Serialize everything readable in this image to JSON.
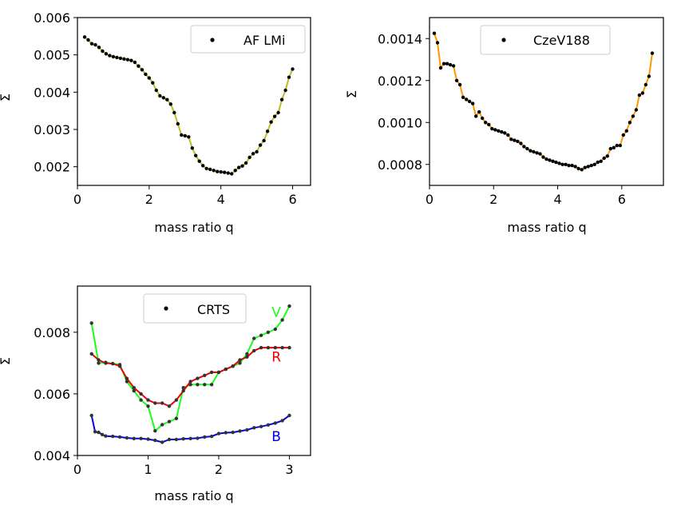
{
  "figure": {
    "background": "#ffffff"
  },
  "chart_data": [
    {
      "id": "af-lmi",
      "type": "line",
      "title": "",
      "xlabel": "mass ratio q",
      "ylabel": "Σ",
      "xlim": [
        0,
        6.5
      ],
      "ylim": [
        0.0015,
        0.006
      ],
      "xticks": [
        0,
        2,
        4,
        6
      ],
      "xtick_labels": [
        "0",
        "2",
        "4",
        "6"
      ],
      "yticks": [
        0.002,
        0.003,
        0.004,
        0.005,
        0.006
      ],
      "ytick_labels": [
        "0.002",
        "0.003",
        "0.004",
        "0.005",
        "0.006"
      ],
      "legend": {
        "label": "AF LMi",
        "position": "top-right",
        "marker_color": "#000000"
      },
      "grid": false,
      "series": [
        {
          "name": "AF LMi",
          "color": "#bcbd22",
          "marker_color": "#000000",
          "x": [
            0.2,
            0.3,
            0.4,
            0.5,
            0.6,
            0.7,
            0.8,
            0.9,
            1.0,
            1.1,
            1.2,
            1.3,
            1.4,
            1.5,
            1.6,
            1.7,
            1.8,
            1.9,
            2.0,
            2.1,
            2.2,
            2.3,
            2.4,
            2.5,
            2.6,
            2.7,
            2.8,
            2.9,
            3.0,
            3.1,
            3.2,
            3.3,
            3.4,
            3.5,
            3.6,
            3.7,
            3.8,
            3.9,
            4.0,
            4.1,
            4.2,
            4.3,
            4.4,
            4.5,
            4.6,
            4.7,
            4.8,
            4.9,
            5.0,
            5.1,
            5.2,
            5.3,
            5.4,
            5.5,
            5.6,
            5.7,
            5.8,
            5.9,
            6.0
          ],
          "y": [
            0.00548,
            0.0054,
            0.0053,
            0.00527,
            0.0052,
            0.0051,
            0.00503,
            0.00498,
            0.00495,
            0.00493,
            0.00491,
            0.00489,
            0.00487,
            0.00485,
            0.0048,
            0.0047,
            0.0046,
            0.00448,
            0.00438,
            0.00425,
            0.00405,
            0.0039,
            0.00385,
            0.0038,
            0.00368,
            0.00345,
            0.00315,
            0.00285,
            0.00283,
            0.0028,
            0.0025,
            0.0023,
            0.00215,
            0.00203,
            0.00195,
            0.00193,
            0.0019,
            0.00187,
            0.00186,
            0.00185,
            0.00183,
            0.00181,
            0.0019,
            0.00198,
            0.00202,
            0.0021,
            0.00225,
            0.00235,
            0.0024,
            0.00258,
            0.0027,
            0.00295,
            0.0032,
            0.00335,
            0.00345,
            0.0038,
            0.00405,
            0.0044,
            0.00462
          ]
        }
      ]
    },
    {
      "id": "czev188",
      "type": "line",
      "title": "",
      "xlabel": "mass ratio q",
      "ylabel": "Σ",
      "xlim": [
        0,
        7.3
      ],
      "ylim": [
        0.0007,
        0.0015
      ],
      "xticks": [
        0,
        2,
        4,
        6
      ],
      "xtick_labels": [
        "0",
        "2",
        "4",
        "6"
      ],
      "yticks": [
        0.0008,
        0.001,
        0.0012,
        0.0014
      ],
      "ytick_labels": [
        "0.0008",
        "0.0010",
        "0.0012",
        "0.0014"
      ],
      "legend": {
        "label": "CzeV188",
        "position": "top-center",
        "marker_color": "#000000"
      },
      "grid": false,
      "series": [
        {
          "name": "CzeV188",
          "color": "#ff9900",
          "marker_color": "#000000",
          "x": [
            0.15,
            0.25,
            0.35,
            0.45,
            0.55,
            0.65,
            0.75,
            0.85,
            0.95,
            1.05,
            1.15,
            1.25,
            1.35,
            1.45,
            1.55,
            1.65,
            1.75,
            1.85,
            1.95,
            2.05,
            2.15,
            2.25,
            2.35,
            2.45,
            2.55,
            2.65,
            2.75,
            2.85,
            2.95,
            3.05,
            3.15,
            3.25,
            3.35,
            3.45,
            3.55,
            3.65,
            3.75,
            3.85,
            3.95,
            4.05,
            4.15,
            4.25,
            4.35,
            4.45,
            4.55,
            4.65,
            4.75,
            4.85,
            4.95,
            5.05,
            5.15,
            5.25,
            5.35,
            5.45,
            5.55,
            5.65,
            5.75,
            5.85,
            5.95,
            6.05,
            6.15,
            6.25,
            6.35,
            6.45,
            6.55,
            6.65,
            6.75,
            6.85,
            6.95
          ],
          "y": [
            0.001425,
            0.00138,
            0.00126,
            0.00128,
            0.00128,
            0.001275,
            0.00127,
            0.0012,
            0.00118,
            0.00112,
            0.00111,
            0.0011,
            0.00109,
            0.00103,
            0.00105,
            0.00102,
            0.001,
            0.00099,
            0.00097,
            0.000965,
            0.00096,
            0.000955,
            0.00095,
            0.00094,
            0.00092,
            0.000915,
            0.00091,
            0.0009,
            0.000885,
            0.000875,
            0.000865,
            0.00086,
            0.000855,
            0.00085,
            0.000835,
            0.000825,
            0.00082,
            0.000815,
            0.00081,
            0.000805,
            0.0008,
            0.0008,
            0.000795,
            0.000795,
            0.00079,
            0.00078,
            0.000775,
            0.000785,
            0.00079,
            0.000795,
            0.0008,
            0.00081,
            0.000815,
            0.00083,
            0.00084,
            0.000875,
            0.00088,
            0.00089,
            0.00089,
            0.00094,
            0.00096,
            0.001,
            0.00103,
            0.00106,
            0.00113,
            0.00114,
            0.00118,
            0.00122,
            0.00133
          ]
        }
      ]
    },
    {
      "id": "crts",
      "type": "line",
      "title": "",
      "xlabel": "mass ratio q",
      "ylabel": "Σ",
      "xlim": [
        0,
        3.3
      ],
      "ylim": [
        0.004,
        0.0095
      ],
      "xticks": [
        0,
        1,
        2,
        3
      ],
      "xtick_labels": [
        "0",
        "1",
        "2",
        "3"
      ],
      "yticks": [
        0.004,
        0.006,
        0.008
      ],
      "ytick_labels": [
        "0.004",
        "0.006",
        "0.008"
      ],
      "legend": {
        "label": "CRTS",
        "position": "top-center",
        "marker_color": "#000000"
      },
      "grid": false,
      "series": [
        {
          "name": "V",
          "color": "#1aff1a",
          "marker_color": "#333333",
          "x": [
            0.2,
            0.3,
            0.4,
            0.5,
            0.6,
            0.7,
            0.8,
            0.9,
            1.0,
            1.1,
            1.2,
            1.3,
            1.4,
            1.5,
            1.6,
            1.7,
            1.8,
            1.9,
            2.0,
            2.1,
            2.2,
            2.3,
            2.4,
            2.5,
            2.6,
            2.7,
            2.8,
            2.9,
            3.0
          ],
          "y": [
            0.0083,
            0.007,
            0.00702,
            0.00698,
            0.00695,
            0.0064,
            0.0061,
            0.0058,
            0.0056,
            0.0048,
            0.005,
            0.0051,
            0.0052,
            0.0062,
            0.0063,
            0.0063,
            0.0063,
            0.0063,
            0.0067,
            0.0068,
            0.0069,
            0.007,
            0.0073,
            0.0078,
            0.0079,
            0.008,
            0.0081,
            0.0084,
            0.00885
          ]
        },
        {
          "name": "R",
          "color": "#ee0000",
          "marker_color": "#333333",
          "x": [
            0.2,
            0.3,
            0.4,
            0.5,
            0.6,
            0.7,
            0.8,
            0.9,
            1.0,
            1.1,
            1.2,
            1.3,
            1.4,
            1.5,
            1.6,
            1.7,
            1.8,
            1.9,
            2.0,
            2.1,
            2.2,
            2.3,
            2.4,
            2.5,
            2.6,
            2.7,
            2.8,
            2.9,
            3.0
          ],
          "y": [
            0.0073,
            0.0071,
            0.007,
            0.00698,
            0.0069,
            0.0065,
            0.0062,
            0.006,
            0.0058,
            0.0057,
            0.0057,
            0.0056,
            0.0058,
            0.0061,
            0.0064,
            0.0065,
            0.0066,
            0.0067,
            0.0067,
            0.0068,
            0.0069,
            0.0071,
            0.0072,
            0.0074,
            0.0075,
            0.0075,
            0.0075,
            0.0075,
            0.0075
          ]
        },
        {
          "name": "B",
          "color": "#0000ee",
          "marker_color": "#333333",
          "x": [
            0.2,
            0.25,
            0.3,
            0.35,
            0.4,
            0.5,
            0.6,
            0.7,
            0.8,
            0.9,
            1.0,
            1.1,
            1.2,
            1.3,
            1.4,
            1.5,
            1.6,
            1.7,
            1.8,
            1.9,
            2.0,
            2.1,
            2.2,
            2.3,
            2.4,
            2.5,
            2.6,
            2.7,
            2.8,
            2.9,
            3.0
          ],
          "y": [
            0.0053,
            0.00477,
            0.00475,
            0.00468,
            0.00463,
            0.00462,
            0.0046,
            0.00457,
            0.00455,
            0.00455,
            0.00453,
            0.00449,
            0.00443,
            0.00452,
            0.00452,
            0.00454,
            0.00455,
            0.00456,
            0.0046,
            0.00462,
            0.00471,
            0.00474,
            0.00475,
            0.00479,
            0.00483,
            0.0049,
            0.00494,
            0.00499,
            0.00505,
            0.00513,
            0.0053
          ]
        }
      ],
      "annotations": [
        {
          "text": "V",
          "x": 2.75,
          "y": 0.0085,
          "color": "#1aff1a"
        },
        {
          "text": "R",
          "x": 2.75,
          "y": 0.00705,
          "color": "#ee0000"
        },
        {
          "text": "B",
          "x": 2.75,
          "y": 0.00447,
          "color": "#0000ee"
        }
      ]
    }
  ]
}
